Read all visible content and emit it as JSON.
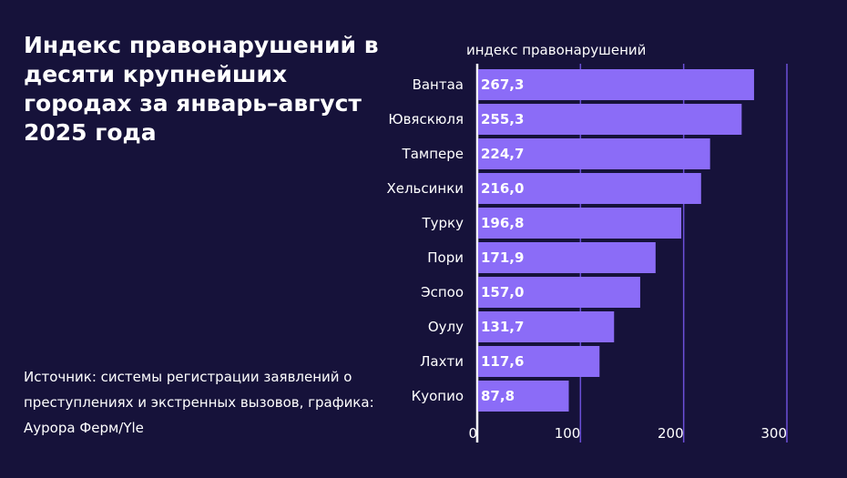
{
  "title": "Индекс правонарушений в десяти крупнейших городах за январь–август 2025 года",
  "source": "Источник: системы регистрации заявлений о преступлениях и экстренных вызовов, графика: Аурора Ферм/Yle",
  "colors": {
    "background": "#16123a",
    "bar": "#8b6cf7",
    "gridline": "#6b4fd8",
    "axis": "#ffffff",
    "text": "#ffffff"
  },
  "chart_data": {
    "type": "bar",
    "orientation": "horizontal",
    "xlabel": "индекс правонарушений",
    "xlim": [
      0,
      300
    ],
    "xticks": [
      {
        "value": 0,
        "label": "0"
      },
      {
        "value": 100,
        "label": "100"
      },
      {
        "value": 200,
        "label": "200"
      },
      {
        "value": 300,
        "label": "300"
      }
    ],
    "grid": true,
    "categories": [
      "Вантаа",
      "Ювяскюля",
      "Тампере",
      "Хельсинки",
      "Турку",
      "Пори",
      "Эспоо",
      "Оулу",
      "Лахти",
      "Куопио"
    ],
    "values": [
      267.3,
      255.3,
      224.7,
      216.0,
      196.8,
      171.9,
      157.0,
      131.7,
      117.6,
      87.8
    ],
    "value_labels": [
      "267,3",
      "255,3",
      "224,7",
      "216,0",
      "196,8",
      "171,9",
      "157,0",
      "131,7",
      "117,6",
      "87,8"
    ]
  }
}
